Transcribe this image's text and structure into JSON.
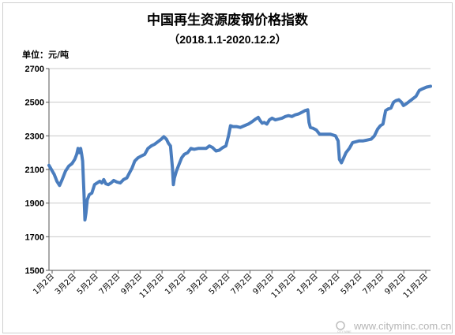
{
  "chart_data": {
    "type": "line",
    "title": "中国再生资源废钢价格指数",
    "subtitle": "（2018.1.1-2020.12.2）",
    "ylabel": "单位：元/吨",
    "ylim": [
      1500,
      2700
    ],
    "yticks": [
      1500,
      1700,
      1900,
      2100,
      2300,
      2500,
      2700
    ],
    "xticks": [
      "1月2日",
      "3月2日",
      "5月2日",
      "7月2日",
      "9月2日",
      "11月2日",
      "1月2日",
      "3月2日",
      "5月2日",
      "7月2日",
      "9月2日",
      "11月2日",
      "1月2日",
      "3月2日",
      "5月2日",
      "7月2日",
      "9月2日",
      "11月2日"
    ],
    "grid": "horizontal",
    "legend": "none",
    "line_color": "#4a7dbe",
    "series": [
      {
        "values": [
          [
            0.0,
            2125
          ],
          [
            0.8,
            2070
          ],
          [
            1.2,
            2030
          ],
          [
            1.6,
            2005
          ],
          [
            2.0,
            2040
          ],
          [
            2.5,
            2090
          ],
          [
            3.0,
            2120
          ],
          [
            3.5,
            2135
          ],
          [
            3.9,
            2160
          ],
          [
            4.2,
            2190
          ],
          [
            4.4,
            2225
          ],
          [
            4.6,
            2200
          ],
          [
            4.8,
            2225
          ],
          [
            4.95,
            2190
          ],
          [
            5.1,
            2150
          ],
          [
            5.3,
            1960
          ],
          [
            5.45,
            1800
          ],
          [
            5.6,
            1840
          ],
          [
            5.8,
            1920
          ],
          [
            6.1,
            1950
          ],
          [
            6.5,
            1960
          ],
          [
            6.9,
            2010
          ],
          [
            7.3,
            2020
          ],
          [
            7.7,
            2030
          ],
          [
            8.0,
            2020
          ],
          [
            8.3,
            2040
          ],
          [
            8.6,
            2015
          ],
          [
            9.0,
            2010
          ],
          [
            9.4,
            2020
          ],
          [
            9.8,
            2035
          ],
          [
            10.3,
            2025
          ],
          [
            10.8,
            2020
          ],
          [
            11.3,
            2040
          ],
          [
            11.8,
            2050
          ],
          [
            12.2,
            2080
          ],
          [
            12.6,
            2110
          ],
          [
            13.0,
            2150
          ],
          [
            13.5,
            2170
          ],
          [
            14.0,
            2180
          ],
          [
            14.5,
            2190
          ],
          [
            15.0,
            2225
          ],
          [
            15.5,
            2240
          ],
          [
            16.0,
            2250
          ],
          [
            16.5,
            2265
          ],
          [
            17.0,
            2280
          ],
          [
            17.4,
            2295
          ],
          [
            17.8,
            2280
          ],
          [
            18.1,
            2255
          ],
          [
            18.4,
            2240
          ],
          [
            18.7,
            2110
          ],
          [
            18.85,
            2010
          ],
          [
            19.0,
            2050
          ],
          [
            19.3,
            2090
          ],
          [
            19.7,
            2130
          ],
          [
            20.1,
            2170
          ],
          [
            20.5,
            2190
          ],
          [
            21.0,
            2200
          ],
          [
            21.5,
            2225
          ],
          [
            22.0,
            2220
          ],
          [
            22.6,
            2225
          ],
          [
            23.2,
            2225
          ],
          [
            23.8,
            2225
          ],
          [
            24.3,
            2240
          ],
          [
            24.8,
            2230
          ],
          [
            25.3,
            2210
          ],
          [
            25.8,
            2215
          ],
          [
            26.3,
            2230
          ],
          [
            26.8,
            2240
          ],
          [
            27.2,
            2300
          ],
          [
            27.5,
            2360
          ],
          [
            27.9,
            2355
          ],
          [
            28.4,
            2355
          ],
          [
            29.0,
            2350
          ],
          [
            29.6,
            2360
          ],
          [
            30.2,
            2370
          ],
          [
            30.8,
            2385
          ],
          [
            31.3,
            2400
          ],
          [
            31.7,
            2410
          ],
          [
            32.0,
            2390
          ],
          [
            32.3,
            2375
          ],
          [
            32.6,
            2380
          ],
          [
            33.0,
            2370
          ],
          [
            33.4,
            2395
          ],
          [
            33.8,
            2405
          ],
          [
            34.3,
            2395
          ],
          [
            34.8,
            2400
          ],
          [
            35.3,
            2405
          ],
          [
            35.8,
            2415
          ],
          [
            36.3,
            2420
          ],
          [
            36.8,
            2415
          ],
          [
            37.3,
            2425
          ],
          [
            37.8,
            2430
          ],
          [
            38.3,
            2440
          ],
          [
            38.8,
            2450
          ],
          [
            39.2,
            2455
          ],
          [
            39.4,
            2380
          ],
          [
            39.6,
            2350
          ],
          [
            40.0,
            2345
          ],
          [
            40.5,
            2335
          ],
          [
            41.0,
            2310
          ],
          [
            41.8,
            2310
          ],
          [
            42.6,
            2310
          ],
          [
            43.4,
            2300
          ],
          [
            43.8,
            2270
          ],
          [
            44.0,
            2160
          ],
          [
            44.3,
            2140
          ],
          [
            44.6,
            2165
          ],
          [
            45.0,
            2200
          ],
          [
            45.5,
            2225
          ],
          [
            46.0,
            2260
          ],
          [
            46.5,
            2265
          ],
          [
            47.0,
            2270
          ],
          [
            47.6,
            2270
          ],
          [
            48.2,
            2275
          ],
          [
            48.8,
            2280
          ],
          [
            49.3,
            2300
          ],
          [
            49.8,
            2340
          ],
          [
            50.2,
            2360
          ],
          [
            50.6,
            2370
          ],
          [
            51.0,
            2450
          ],
          [
            51.4,
            2460
          ],
          [
            51.8,
            2465
          ],
          [
            52.2,
            2500
          ],
          [
            52.6,
            2510
          ],
          [
            53.0,
            2515
          ],
          [
            53.4,
            2500
          ],
          [
            53.7,
            2480
          ],
          [
            54.1,
            2490
          ],
          [
            54.6,
            2505
          ],
          [
            55.1,
            2520
          ],
          [
            55.6,
            2535
          ],
          [
            56.1,
            2570
          ],
          [
            56.6,
            2580
          ],
          [
            57.2,
            2590
          ],
          [
            57.8,
            2595
          ]
        ]
      }
    ]
  },
  "watermark": {
    "logo_text": "CITY MINE",
    "text": "www.cityminc.com.cn"
  }
}
